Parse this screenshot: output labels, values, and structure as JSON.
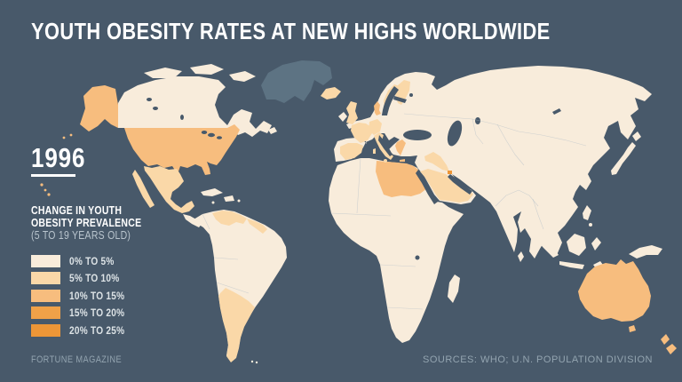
{
  "header": {
    "title": "YOUTH OBESITY RATES AT NEW HIGHS WORLDWIDE"
  },
  "year_label": "1996",
  "legend": {
    "heading_lines": [
      "CHANGE IN YOUTH",
      "OBESITY PREVALENCE",
      "(5 TO 19 YEARS OLD)"
    ],
    "items": [
      {
        "label": "0% TO 5%",
        "color": "#F8ECDB"
      },
      {
        "label": "5% TO 10%",
        "color": "#FAD8A8"
      },
      {
        "label": "10% TO 15%",
        "color": "#F7BD7E"
      },
      {
        "label": "15% TO 20%",
        "color": "#F0A148"
      },
      {
        "label": "20% TO 25%",
        "color": "#ED9637"
      }
    ]
  },
  "footer": {
    "left": "FORTUNE MAGAZINE",
    "right": "SOURCES: WHO; U.N. POPULATION DIVISION"
  },
  "colors": {
    "background": "#48596A",
    "ocean": "#48596A",
    "no_data": "#5D7383",
    "land_border": "#AEBCC6",
    "title_text": "#FFFFFF",
    "footer_text": "#93A4B0"
  },
  "map": {
    "region_buckets": {
      "greenland": "no_data",
      "canada": 0,
      "usa": 2,
      "alaska": 2,
      "hawaii": 2,
      "mexico": 1,
      "central-america": 0,
      "cuba": 0,
      "hispaniola": 0,
      "caribbean": 0,
      "south-america": 0,
      "venezuela": 1,
      "guyanas": 1,
      "argentina-chile": 1,
      "falklands": 0,
      "africa": 0,
      "libya-egypt": 2,
      "madagascar": 0,
      "eurasia": 0,
      "iceland": 1,
      "uk": 1,
      "ireland": 0,
      "france": 1,
      "spain": 1,
      "germany": 1,
      "denmark": 2,
      "sweden": 1,
      "finland": 1,
      "italy": 1,
      "greece": 2,
      "iraq": 1,
      "arabia": 1,
      "kuwait": 4,
      "sri-lanka": 0,
      "japan": 0,
      "sakhalin": 0,
      "philippines": 0,
      "indonesia": 0,
      "new-guinea": 0,
      "australia": 2,
      "tasmania": 2,
      "new-zealand": 2
    }
  }
}
